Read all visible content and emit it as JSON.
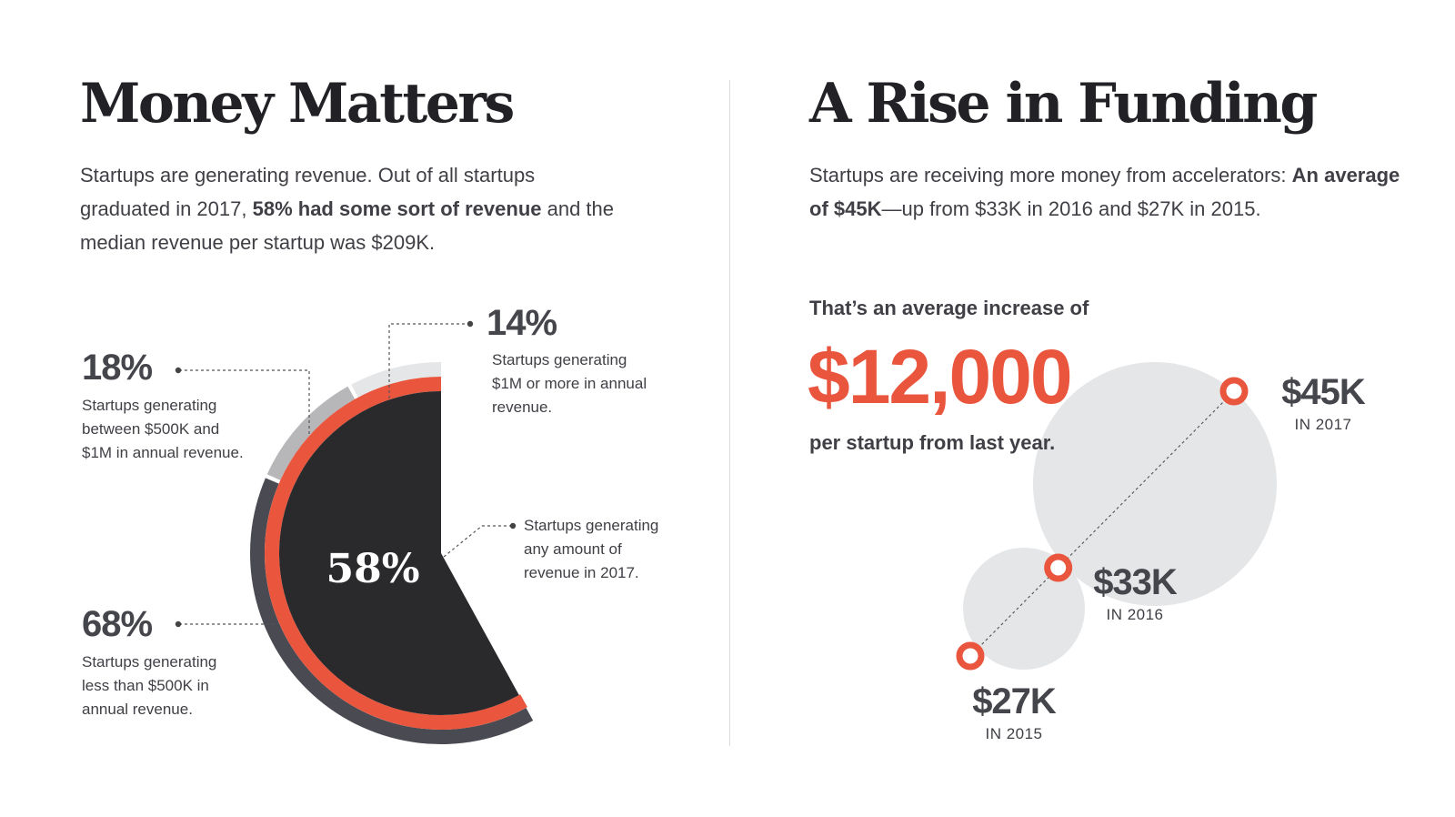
{
  "left": {
    "title": "Money Matters",
    "intro_1": "Startups are generating revenue. Out of all startups graduated in 2017, ",
    "intro_bold": "58% had some sort of revenue",
    "intro_2": " and the median revenue per startup was $209K."
  },
  "right": {
    "title": "A Rise in Funding",
    "intro_1": "Startups are receiving more money from accelerators: ",
    "intro_bold": "An average of $45K",
    "intro_2": "—up from $33K in 2016 and $27K in 2015.",
    "increase_label": "That’s an average increase of",
    "increase_value": "$12,000",
    "increase_suffix": "per startup from last year."
  },
  "colors": {
    "dark": "#2a2a2d",
    "orange": "#e9563d",
    "gray_dark": "#4a4a52",
    "gray_mid": "#b7b7b9",
    "gray_light": "#e5e6e8",
    "bubble": "#e5e6e8"
  },
  "chart_data": [
    {
      "type": "pie",
      "center_label": "58%",
      "slices": [
        {
          "value": 58,
          "label": "58%",
          "description": "Startups generating any amount of revenue in 2017."
        }
      ],
      "rings": [
        {
          "value": 68,
          "label": "68%",
          "description": "Startups generating less than $500K in annual revenue."
        },
        {
          "value": 18,
          "label": "18%",
          "description": "Startups generating between $500K and $1M in annual revenue."
        },
        {
          "value": 14,
          "label": "14%",
          "description": "Startups generating $1M or more in annual revenue."
        }
      ]
    },
    {
      "type": "scatter",
      "series": [
        {
          "points": [
            {
              "year": "IN 2015",
              "value": 27,
              "label": "$27K"
            },
            {
              "year": "IN 2016",
              "value": 33,
              "label": "$33K"
            },
            {
              "year": "IN 2017",
              "value": 45,
              "label": "$45K"
            }
          ]
        }
      ]
    }
  ]
}
